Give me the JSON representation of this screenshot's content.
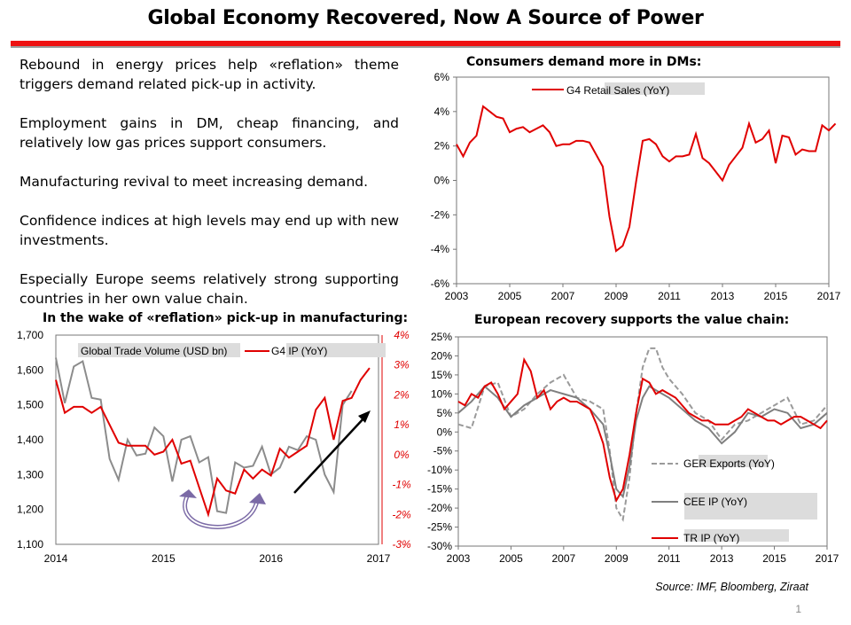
{
  "title": "Global Economy Recovered, Now A Source of Power",
  "bullets": [
    "Rebound in energy prices help «reflation» theme triggers demand related pick-up in activity.",
    "Employment gains in DM, cheap financing, and relatively low gas prices support consumers.",
    "Manufacturing revival to meet increasing demand.",
    "Confidence indices at high levels may end up with new investments.",
    "Especially Europe seems relatively strong supporting countries in her own value chain."
  ],
  "source": "Source: IMF, Bloomberg, Ziraat",
  "page_number": "1",
  "chart_data": [
    {
      "id": "retail",
      "type": "line",
      "title": "Consumers demand more in DMs:",
      "ylim": [
        -6,
        6
      ],
      "yticks": [
        "-6%",
        "-4%",
        "-2%",
        "0%",
        "2%",
        "4%",
        "6%"
      ],
      "xlim": [
        2003,
        2017
      ],
      "xticks": [
        "2003",
        "2005",
        "2007",
        "2009",
        "2011",
        "2013",
        "2015",
        "2017"
      ],
      "legend": "top-center",
      "series": [
        {
          "name": "G4 Retail Sales (YoY)",
          "color": "#e00000",
          "x": [
            2003.0,
            2003.25,
            2003.5,
            2003.75,
            2004.0,
            2004.25,
            2004.5,
            2004.75,
            2005.0,
            2005.25,
            2005.5,
            2005.75,
            2006.0,
            2006.25,
            2006.5,
            2006.75,
            2007.0,
            2007.25,
            2007.5,
            2007.75,
            2008.0,
            2008.25,
            2008.5,
            2008.75,
            2009.0,
            2009.25,
            2009.5,
            2009.75,
            2010.0,
            2010.25,
            2010.5,
            2010.75,
            2011.0,
            2011.25,
            2011.5,
            2011.75,
            2012.0,
            2012.25,
            2012.5,
            2012.75,
            2013.0,
            2013.25,
            2013.5,
            2013.75,
            2014.0,
            2014.25,
            2014.5,
            2014.75,
            2015.0,
            2015.25,
            2015.5,
            2015.75,
            2016.0,
            2016.25,
            2016.5,
            2016.75,
            2017.0,
            2017.25
          ],
          "y": [
            2.1,
            1.4,
            2.2,
            2.6,
            4.3,
            4.0,
            3.7,
            3.6,
            2.8,
            3.0,
            3.1,
            2.8,
            3.0,
            3.2,
            2.8,
            2.0,
            2.1,
            2.1,
            2.3,
            2.3,
            2.2,
            1.5,
            0.8,
            -2.1,
            -4.1,
            -3.8,
            -2.7,
            -0.1,
            2.3,
            2.4,
            2.1,
            1.4,
            1.1,
            1.4,
            1.4,
            1.5,
            2.7,
            1.3,
            1.0,
            0.5,
            0.0,
            0.9,
            1.4,
            1.9,
            3.3,
            2.2,
            2.4,
            2.9,
            1.0,
            2.6,
            2.5,
            1.5,
            1.8,
            1.7,
            1.7,
            3.2,
            2.9,
            3.3
          ]
        }
      ]
    },
    {
      "id": "trade",
      "type": "line",
      "title": "In the wake of «reflation» pick-up in manufacturing:",
      "ylim": [
        1100,
        1700
      ],
      "yticks": [
        "1,100",
        "1,200",
        "1,300",
        "1,400",
        "1,500",
        "1,600",
        "1,700"
      ],
      "y2lim": [
        -3,
        4
      ],
      "y2ticks": [
        "-3%",
        "-2%",
        "-1%",
        "0%",
        "1%",
        "2%",
        "3%",
        "4%"
      ],
      "xlim": [
        2014,
        2017
      ],
      "xticks": [
        "2014",
        "2015",
        "2016",
        "2017"
      ],
      "series": [
        {
          "name": "Global Trade Volume (USD bn)",
          "color": "#8c8c8c",
          "axis": "left",
          "x": [
            2014.0,
            2014.083,
            2014.167,
            2014.25,
            2014.333,
            2014.417,
            2014.5,
            2014.583,
            2014.667,
            2014.75,
            2014.833,
            2014.917,
            2015.0,
            2015.083,
            2015.167,
            2015.25,
            2015.333,
            2015.417,
            2015.5,
            2015.583,
            2015.667,
            2015.75,
            2015.833,
            2015.917,
            2016.0,
            2016.083,
            2016.167,
            2016.25,
            2016.333,
            2016.417,
            2016.5,
            2016.583,
            2016.667,
            2016.75
          ],
          "y": [
            1635,
            1505,
            1610,
            1625,
            1520,
            1515,
            1345,
            1285,
            1400,
            1355,
            1360,
            1435,
            1410,
            1280,
            1400,
            1410,
            1335,
            1350,
            1195,
            1190,
            1335,
            1320,
            1325,
            1380,
            1300,
            1320,
            1380,
            1370,
            1410,
            1400,
            1300,
            1250,
            1500,
            1540
          ]
        },
        {
          "name": "G4 IP (YoY)",
          "color": "#e00000",
          "axis": "right",
          "x": [
            2014.0,
            2014.083,
            2014.167,
            2014.25,
            2014.333,
            2014.417,
            2014.5,
            2014.583,
            2014.667,
            2014.75,
            2014.833,
            2014.917,
            2015.0,
            2015.083,
            2015.167,
            2015.25,
            2015.333,
            2015.417,
            2015.5,
            2015.583,
            2015.667,
            2015.75,
            2015.833,
            2015.917,
            2016.0,
            2016.083,
            2016.167,
            2016.25,
            2016.333,
            2016.417,
            2016.5,
            2016.583,
            2016.667,
            2016.75,
            2016.833,
            2016.917
          ],
          "y": [
            2.5,
            1.4,
            1.6,
            1.6,
            1.4,
            1.6,
            1.0,
            0.4,
            0.3,
            0.3,
            0.3,
            0.0,
            0.1,
            0.5,
            -0.3,
            -0.2,
            -1.1,
            -2.0,
            -0.8,
            -1.2,
            -1.3,
            -0.5,
            -0.8,
            -0.5,
            -0.7,
            0.2,
            -0.1,
            0.1,
            0.3,
            1.5,
            1.9,
            0.5,
            1.8,
            1.9,
            2.5,
            2.9
          ]
        }
      ]
    },
    {
      "id": "europe",
      "type": "line",
      "title": "European recovery supports the value chain:",
      "ylim": [
        -30,
        25
      ],
      "yticks": [
        "-30%",
        "-25%",
        "-20%",
        "-15%",
        "-10%",
        "-5%",
        "0%",
        "5%",
        "10%",
        "15%",
        "20%",
        "25%"
      ],
      "xlim": [
        2003,
        2017
      ],
      "xticks": [
        "2003",
        "2005",
        "2007",
        "2009",
        "2011",
        "2013",
        "2015",
        "2017"
      ],
      "series": [
        {
          "name": "GER Exports (YoY)",
          "color": "#9a9a9a",
          "dash": true,
          "x": [
            2003.0,
            2003.5,
            2004.0,
            2004.5,
            2005.0,
            2005.5,
            2006.0,
            2006.5,
            2007.0,
            2007.5,
            2008.0,
            2008.5,
            2008.75,
            2009.0,
            2009.25,
            2009.5,
            2009.75,
            2010.0,
            2010.25,
            2010.5,
            2010.75,
            2011.0,
            2011.5,
            2012.0,
            2012.5,
            2013.0,
            2013.5,
            2014.0,
            2014.5,
            2015.0,
            2015.5,
            2016.0,
            2016.5,
            2017.0
          ],
          "y": [
            2,
            1,
            12,
            13,
            4,
            6,
            10,
            13,
            15,
            9,
            8,
            6,
            -5,
            -20,
            -23,
            -12,
            5,
            17,
            22,
            22,
            17,
            14,
            10,
            5,
            3,
            -2,
            2,
            3,
            5,
            7,
            9,
            2,
            3,
            7
          ]
        },
        {
          "name": "CEE IP (YoY)",
          "color": "#7f7f7f",
          "x": [
            2003.0,
            2003.5,
            2004.0,
            2004.5,
            2005.0,
            2005.5,
            2006.0,
            2006.5,
            2007.0,
            2007.5,
            2008.0,
            2008.5,
            2008.75,
            2009.0,
            2009.25,
            2009.5,
            2009.75,
            2010.0,
            2010.25,
            2010.5,
            2010.75,
            2011.0,
            2011.5,
            2012.0,
            2012.5,
            2013.0,
            2013.5,
            2014.0,
            2014.5,
            2015.0,
            2015.5,
            2016.0,
            2016.5,
            2017.0
          ],
          "y": [
            5,
            8,
            12,
            9,
            4,
            7,
            9,
            11,
            10,
            9,
            6,
            2,
            -6,
            -15,
            -17,
            -9,
            3,
            9,
            12,
            11,
            10,
            9,
            6,
            3,
            1,
            -3,
            0,
            5,
            4,
            6,
            5,
            1,
            2,
            5
          ]
        },
        {
          "name": "TR IP (YoY)",
          "color": "#e00000",
          "x": [
            2003.0,
            2003.25,
            2003.5,
            2003.75,
            2004.0,
            2004.25,
            2004.5,
            2004.75,
            2005.0,
            2005.25,
            2005.5,
            2005.75,
            2006.0,
            2006.25,
            2006.5,
            2006.75,
            2007.0,
            2007.25,
            2007.5,
            2007.75,
            2008.0,
            2008.25,
            2008.5,
            2008.75,
            2009.0,
            2009.25,
            2009.5,
            2009.75,
            2010.0,
            2010.25,
            2010.5,
            2010.75,
            2011.0,
            2011.25,
            2011.5,
            2011.75,
            2012.0,
            2012.25,
            2012.5,
            2012.75,
            2013.0,
            2013.25,
            2013.5,
            2013.75,
            2014.0,
            2014.25,
            2014.5,
            2014.75,
            2015.0,
            2015.25,
            2015.5,
            2015.75,
            2016.0,
            2016.25,
            2016.5,
            2016.75,
            2017.0
          ],
          "y": [
            8,
            7,
            10,
            9,
            12,
            13,
            10,
            6,
            8,
            10,
            19,
            16,
            9,
            11,
            6,
            8,
            9,
            8,
            8,
            7,
            6,
            2,
            -3,
            -12,
            -18,
            -15,
            -6,
            5,
            14,
            13,
            10,
            11,
            10,
            9,
            7,
            5,
            4,
            3,
            3,
            2,
            2,
            2,
            3,
            4,
            6,
            5,
            4,
            3,
            3,
            2,
            3,
            4,
            4,
            3,
            2,
            1,
            3
          ]
        }
      ]
    }
  ]
}
